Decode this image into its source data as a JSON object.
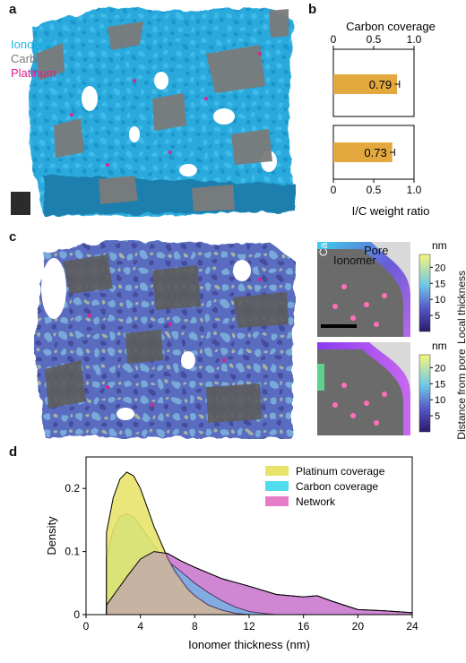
{
  "panel_a": {
    "letter": "a",
    "legend": [
      {
        "label": "Ionomer",
        "color": "#1fb8e6"
      },
      {
        "label": "Carbon",
        "color": "#7a7a7a"
      },
      {
        "label": "Platinum",
        "color": "#e0208f"
      }
    ]
  },
  "panel_b": {
    "letter": "b"
  },
  "panel_c": {
    "letter": "c",
    "inset_top": {
      "carbon": "Carbon",
      "pore": "Pore",
      "ionomer": "Ionomer"
    },
    "colorbar_top": {
      "unit": "nm",
      "label": "Local thickness",
      "ticks": [
        "20",
        "15",
        "10",
        "5"
      ]
    },
    "colorbar_bottom": {
      "unit": "nm",
      "label": "Distance from pore",
      "ticks": [
        "20",
        "15",
        "10",
        "5"
      ]
    }
  },
  "panel_d": {
    "letter": "d"
  },
  "chart_data": [
    {
      "type": "bar",
      "id": "carbon-coverage",
      "title": "Carbon coverage",
      "orientation": "horizontal",
      "values": [
        0.79
      ],
      "data_labels": [
        "0.79"
      ],
      "error": [
        0.03
      ],
      "xlim": [
        0,
        1
      ],
      "xticks": [
        "0",
        "0.5",
        "1.0"
      ],
      "color": "#e3a93f"
    },
    {
      "type": "bar",
      "id": "ic-weight-ratio",
      "xlabel": "I/C weight ratio",
      "orientation": "horizontal",
      "values": [
        0.73
      ],
      "data_labels": [
        "0.73"
      ],
      "error": [
        0.03
      ],
      "xlim": [
        0,
        1
      ],
      "xticks": [
        "0",
        "0.5",
        "1.0"
      ],
      "color": "#e3a93f"
    },
    {
      "type": "area",
      "id": "thickness-density",
      "xlabel": "Ionomer thickness (nm)",
      "ylabel": "Density",
      "xlim": [
        0,
        24
      ],
      "ylim": [
        0,
        0.25
      ],
      "xticks": [
        "0",
        "4",
        "8",
        "12",
        "16",
        "20",
        "24"
      ],
      "yticks": [
        "0",
        "0.1",
        "0.2"
      ],
      "legend_position": "top-right",
      "series": [
        {
          "name": "Platinum coverage",
          "color": "#e8e36a",
          "x": [
            1.5,
            2,
            2.5,
            3,
            3.5,
            4,
            4.5,
            5,
            5.5,
            6,
            6.5,
            7,
            7.5,
            8,
            9,
            10,
            11,
            12
          ],
          "y": [
            0.13,
            0.185,
            0.215,
            0.226,
            0.22,
            0.2,
            0.17,
            0.14,
            0.115,
            0.09,
            0.07,
            0.055,
            0.04,
            0.03,
            0.015,
            0.007,
            0.002,
            0.0
          ]
        },
        {
          "name": "Carbon coverage",
          "color": "#4fdcec",
          "x": [
            1.5,
            2,
            2.5,
            3,
            3.5,
            4,
            4.5,
            5,
            5.5,
            6,
            7,
            8,
            9,
            10,
            11,
            12,
            13,
            14
          ],
          "y": [
            0.09,
            0.135,
            0.155,
            0.16,
            0.155,
            0.14,
            0.125,
            0.11,
            0.095,
            0.085,
            0.068,
            0.05,
            0.035,
            0.022,
            0.012,
            0.005,
            0.002,
            0.0
          ]
        },
        {
          "name": "Network",
          "color": "#e57cc8",
          "x": [
            1.5,
            2,
            3,
            4,
            5,
            6,
            7,
            8,
            10,
            12,
            14,
            16,
            17,
            18,
            20,
            22,
            24
          ],
          "y": [
            0.015,
            0.03,
            0.06,
            0.088,
            0.1,
            0.097,
            0.085,
            0.075,
            0.057,
            0.045,
            0.032,
            0.028,
            0.03,
            0.022,
            0.008,
            0.006,
            0.003
          ]
        }
      ]
    }
  ]
}
